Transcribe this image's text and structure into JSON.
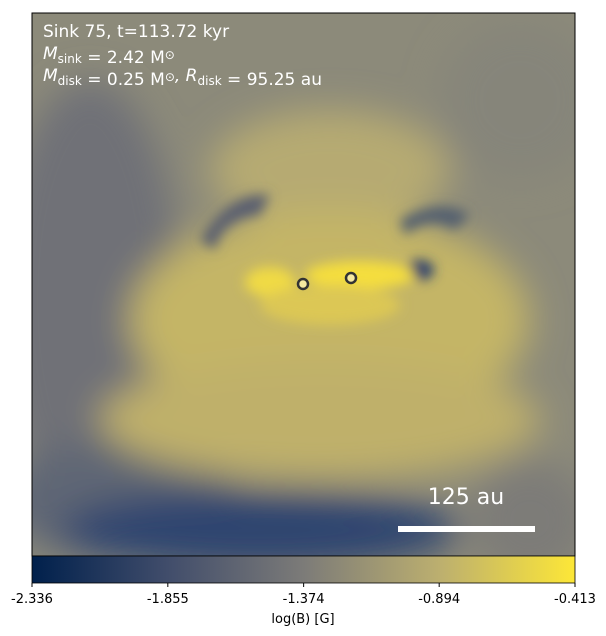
{
  "chart_data": {
    "type": "image",
    "annotations": [
      {
        "parts": [
          "Sink 75, t=113.72 kyr"
        ]
      },
      {
        "parts": [
          "M",
          "sink",
          " = 2.42 M",
          "⊙"
        ]
      },
      {
        "parts": [
          "M",
          "disk",
          " = 0.25 M",
          "⊙",
          ", R",
          "disk",
          " = 95.25 au"
        ]
      }
    ],
    "scale_bar": "125 au",
    "colorbar": {
      "label": "log(B) [G]",
      "clim": [
        -2.336,
        -0.413
      ],
      "ticks": [
        -2.336,
        -1.855,
        -1.374,
        -0.894,
        -0.413
      ],
      "colors": [
        "#00204c",
        "#414d6b",
        "#7c7b78",
        "#bcaf6f",
        "#fde737"
      ]
    }
  }
}
